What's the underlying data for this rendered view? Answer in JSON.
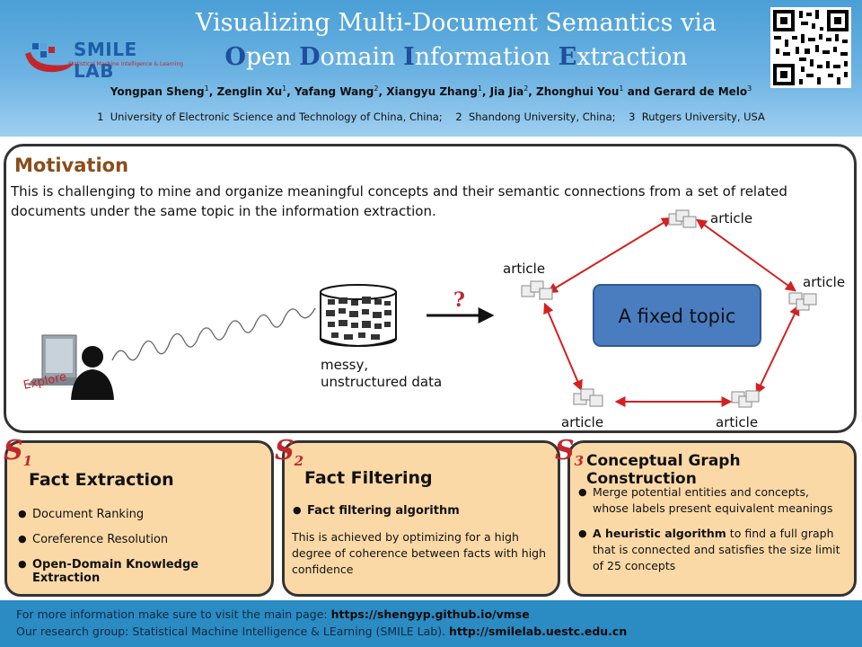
{
  "header": {
    "logo_text": "SMILE LAB",
    "logo_subtitle": "Statistical Machine Intelligence & Learning",
    "title_line1": "Visualizing Multi-Document Semantics via",
    "title_line2_words": [
      {
        "initial": "O",
        "rest": "pen"
      },
      {
        "initial": "D",
        "rest": "omain"
      },
      {
        "initial": "I",
        "rest": "nformation"
      },
      {
        "initial": "E",
        "rest": "xtraction"
      }
    ],
    "authors": [
      {
        "name": "Yongpan Sheng",
        "affil": "1"
      },
      {
        "name": "Zenglin Xu",
        "affil": "1"
      },
      {
        "name": "Yafang Wang",
        "affil": "2"
      },
      {
        "name": "Xiangyu Zhang",
        "affil": "1"
      },
      {
        "name": "Jia Jia",
        "affil": "2"
      },
      {
        "name": "Zhonghui You",
        "affil": "1"
      },
      {
        "name": "Gerard de Melo",
        "affil": "3"
      }
    ],
    "affiliations": [
      {
        "num": "1",
        "name": "University of Electronic Science and Technology of China, China;"
      },
      {
        "num": "2",
        "name": "Shandong University, China;"
      },
      {
        "num": "3",
        "name": "Rutgers University, USA"
      }
    ]
  },
  "motivation": {
    "title": "Motivation",
    "text": "This is challenging to mine and organize meaningful concepts and their semantic connections from a set of related documents under the same topic in the information extraction.",
    "explore_label": "Explore",
    "data_label_1": "messy,",
    "data_label_2": "unstructured data",
    "question_mark": "?",
    "center_label": "A fixed topic",
    "article_label": "article",
    "colors": {
      "arrow": "#d42020",
      "topic_box": "#4a7cc0",
      "topic_border": "#2f5990"
    }
  },
  "panels": {
    "s1": {
      "label": "S",
      "sub": "1",
      "title": "Fact Extraction",
      "items": [
        "Document Ranking",
        "Coreference Resolution",
        "Open-Domain Knowledge Extraction"
      ]
    },
    "s2": {
      "label": "S",
      "sub": "2",
      "title": "Fact Filtering",
      "item": "Fact filtering algorithm",
      "text": "This is achieved by optimizing for a high degree of coherence between facts with high confidence"
    },
    "s3": {
      "label": "S",
      "sub": "3",
      "title": "Conceptual Graph Construction",
      "item1": "Merge potential entities and concepts, whose labels present equivalent meanings",
      "item2_bold": "A heuristic algorithm",
      "item2_rest": " to find a full graph that is connected and satisfies the size limit of 25 concepts"
    }
  },
  "footer": {
    "line1_prefix": "For more information make sure to visit the main page: ",
    "line1_link": "https://shengyp.github.io/vmse",
    "line2_prefix": "Our research group: Statistical Machine Intelligence & LEarning (SMILE Lab). ",
    "line2_link": "http://smilelab.uestc.edu.cn"
  },
  "colors": {
    "header_blue": "#4a9fd6",
    "panel_fill": "#fbd9a7",
    "footer_blue": "#2b8bc3",
    "section_red": "#c0272d",
    "motivation_brown": "#8a4d1a"
  }
}
